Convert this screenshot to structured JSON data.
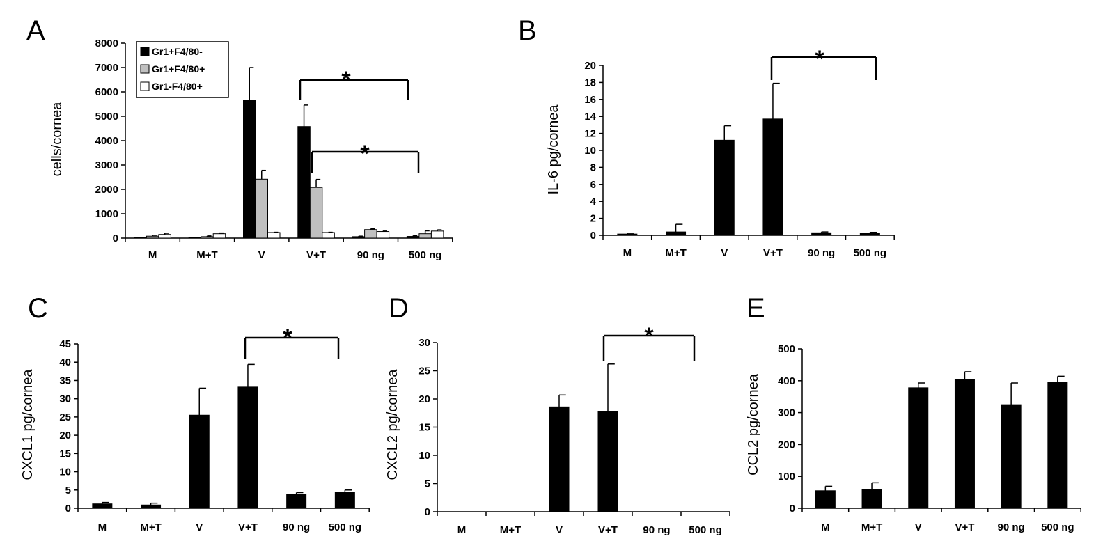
{
  "chart_data": [
    {
      "panel": "A",
      "type": "bar",
      "ylabel": "cells/cornea",
      "ylim": [
        0,
        8000
      ],
      "yticks": [
        0,
        1000,
        2000,
        3000,
        4000,
        5000,
        6000,
        7000,
        8000
      ],
      "categories": [
        "M",
        "M+T",
        "V",
        "V+T",
        "90 ng",
        "500 ng"
      ],
      "series": [
        {
          "name": "Gr1+F4/80-",
          "color": "#000000",
          "values": [
            20,
            20,
            5650,
            4580,
            60,
            70
          ],
          "errors": [
            10,
            10,
            1350,
            880,
            20,
            30
          ]
        },
        {
          "name": "Gr1+F4/80+",
          "color": "#c0c0c0",
          "values": [
            80,
            60,
            2420,
            2080,
            350,
            180
          ],
          "errors": [
            40,
            30,
            360,
            330,
            30,
            120
          ]
        },
        {
          "name": "Gr1-F4/80+",
          "color": "#ffffff",
          "values": [
            150,
            180,
            230,
            230,
            270,
            290
          ],
          "errors": [
            50,
            30,
            10,
            10,
            20,
            50
          ]
        }
      ],
      "legend": "top-left",
      "significance": [
        {
          "from": "V+T",
          "to": "500 ng",
          "label": "*"
        },
        {
          "from": "V+T",
          "to": "500 ng",
          "label": "*"
        }
      ]
    },
    {
      "panel": "B",
      "type": "bar",
      "ylabel": "IL-6 pg/cornea",
      "ylim": [
        0,
        20
      ],
      "yticks": [
        0,
        2,
        4,
        6,
        8,
        10,
        12,
        14,
        16,
        18,
        20
      ],
      "categories": [
        "M",
        "M+T",
        "V",
        "V+T",
        "90 ng",
        "500 ng"
      ],
      "series": [
        {
          "color": "#000000",
          "values": [
            0.15,
            0.4,
            11.2,
            13.7,
            0.3,
            0.25
          ],
          "errors": [
            0.1,
            0.9,
            1.7,
            4.2,
            0.1,
            0.1
          ]
        }
      ],
      "significance": [
        {
          "from": "V+T",
          "to": "500 ng",
          "label": "*"
        }
      ]
    },
    {
      "panel": "C",
      "type": "bar",
      "ylabel": "CXCL1 pg/cornea",
      "ylim": [
        0,
        45
      ],
      "yticks": [
        0,
        5,
        10,
        15,
        20,
        25,
        30,
        35,
        40,
        45
      ],
      "categories": [
        "M",
        "M+T",
        "V",
        "V+T",
        "90 ng",
        "500 ng"
      ],
      "series": [
        {
          "color": "#000000",
          "values": [
            1.2,
            0.9,
            25.5,
            33.2,
            3.8,
            4.3
          ],
          "errors": [
            0.4,
            0.5,
            7.4,
            6.2,
            0.5,
            0.7
          ]
        }
      ],
      "significance": [
        {
          "from": "V+T",
          "to": "500 ng",
          "label": "*"
        }
      ]
    },
    {
      "panel": "D",
      "type": "bar",
      "ylabel": "CXCL2 pg/cornea",
      "ylim": [
        0,
        30
      ],
      "yticks": [
        0,
        5,
        10,
        15,
        20,
        25,
        30
      ],
      "categories": [
        "M",
        "M+T",
        "V",
        "V+T",
        "90 ng",
        "500 ng"
      ],
      "series": [
        {
          "color": "#000000",
          "values": [
            0,
            0,
            18.6,
            17.8,
            0,
            0
          ],
          "errors": [
            0,
            0,
            2.1,
            8.4,
            0,
            0
          ]
        }
      ],
      "significance": [
        {
          "from": "V+T",
          "to": "500 ng",
          "label": "*"
        }
      ]
    },
    {
      "panel": "E",
      "type": "bar",
      "ylabel": "CCL2 pg/cornea",
      "ylim": [
        0,
        500
      ],
      "yticks": [
        0,
        100,
        200,
        300,
        400,
        500
      ],
      "categories": [
        "M",
        "M+T",
        "V",
        "V+T",
        "90 ng",
        "500 ng"
      ],
      "series": [
        {
          "color": "#000000",
          "values": [
            55,
            60,
            378,
            403,
            325,
            396
          ],
          "errors": [
            14,
            20,
            15,
            25,
            68,
            18
          ]
        }
      ],
      "significance": []
    }
  ]
}
